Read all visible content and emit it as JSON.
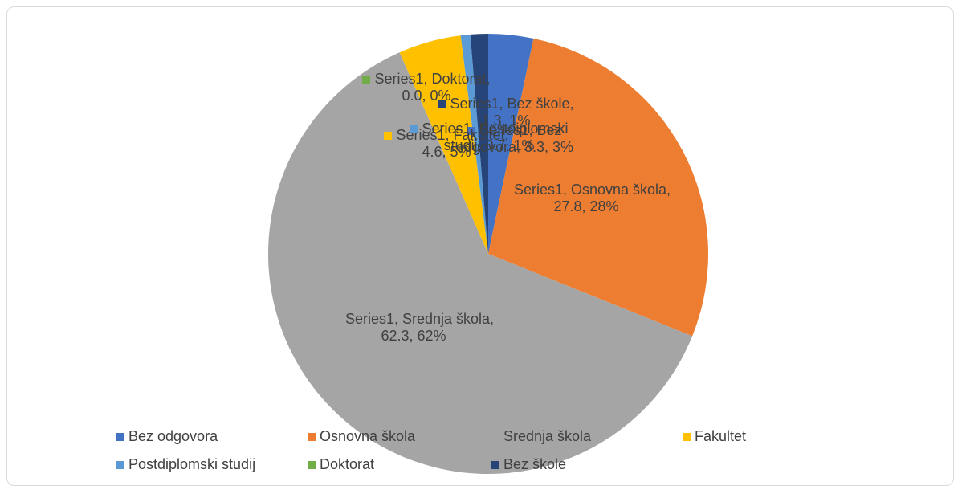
{
  "chart_data": {
    "type": "pie",
    "categories": [
      "Bez odgovora",
      "Osnovna škola",
      "Srednja škola",
      "Fakultet",
      "Postdiplomski studij",
      "Doktorat",
      "Bez škole"
    ],
    "values": [
      3.3,
      27.8,
      62.3,
      4.6,
      0.7,
      0.0,
      1.3
    ],
    "value_labels": [
      "Series1, Bez odgovora, 3.3, 3%",
      "Series1, Osnovna škola, 27.8, 28%",
      "Series1, Srednja škola, 62.3, 62%",
      "Series1, Fakultet, 4.6, 5%",
      "Series1, Postdiplomski studij, 0.7, 1%",
      "Series1, Doktorat, 0.0, 0%",
      "Series1, Bez škole, 1.3, 1%"
    ],
    "colors": [
      "#4472c4",
      "#ed7d31",
      "#a5a5a5",
      "#ffc000",
      "#5b9bd5",
      "#70ad47",
      "#264478"
    ],
    "legend": "bottom"
  }
}
